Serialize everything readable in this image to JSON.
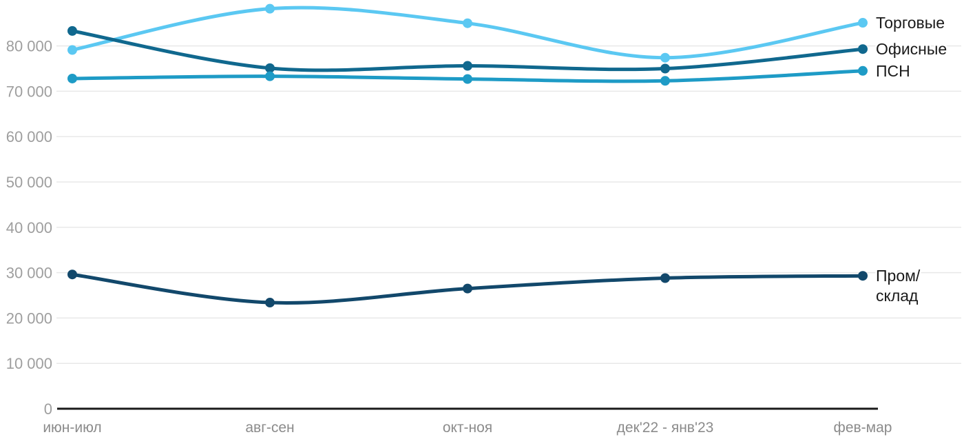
{
  "chart_data": {
    "type": "line",
    "title": "",
    "xlabel": "",
    "ylabel": "",
    "grid": true,
    "legend_position": "right-of-line-ends",
    "categories": [
      "июн-июл",
      "авг-сен",
      "окт-ноя",
      "дек'22 - янв'23",
      "фев-мар"
    ],
    "series": [
      {
        "key": "torgovye",
        "name": "Торговые",
        "label_lines": [
          "Торговые"
        ],
        "color": "#5bc8f2",
        "values": [
          79100,
          88200,
          85000,
          77400,
          85100
        ]
      },
      {
        "key": "ofisnye",
        "name": "Офисные",
        "label_lines": [
          "Офисные"
        ],
        "color": "#10688e",
        "values": [
          83300,
          75100,
          75600,
          75000,
          79300
        ]
      },
      {
        "key": "psn",
        "name": "ПСН",
        "label_lines": [
          "ПСН"
        ],
        "color": "#1e9bc6",
        "values": [
          72800,
          73300,
          72700,
          72300,
          74500
        ]
      },
      {
        "key": "prom-sklad",
        "name": "Пром/склад",
        "label_lines": [
          "Пром/",
          "склад"
        ],
        "color": "#12486b",
        "values": [
          29600,
          23400,
          26500,
          28800,
          29300
        ]
      }
    ],
    "y_ticks": [
      0,
      10000,
      20000,
      30000,
      40000,
      50000,
      60000,
      70000,
      80000
    ],
    "y_tick_labels": [
      "0",
      "10 000",
      "20 000",
      "30 000",
      "40 000",
      "50 000",
      "60 000",
      "70 000",
      "80 000"
    ],
    "ylim": [
      0,
      90000
    ]
  },
  "colors": {
    "grid_line": "#e8e8e8",
    "axis_line": "#1a1a1a",
    "y_tick_text": "#9e9e9e",
    "x_tick_text": "#8b8b8b",
    "series_label_text": "#1a1a1a",
    "background": "#ffffff"
  }
}
